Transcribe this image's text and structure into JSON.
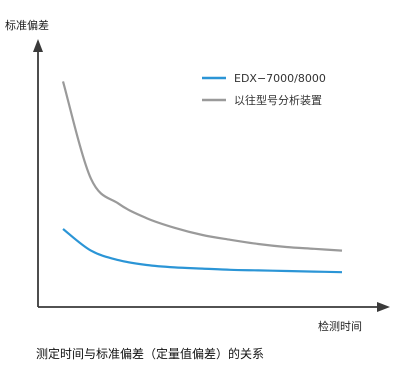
{
  "chart_data": {
    "type": "line",
    "caption": "测定时间与标准偏差（定量值偏差）的关系",
    "ylabel": "标准偏差",
    "xlabel": "检测时间",
    "x": [
      0,
      1,
      2,
      3,
      4,
      5,
      6,
      7,
      8,
      9,
      10
    ],
    "series": [
      {
        "name": "EDX−7000/8000",
        "color": "#2b95d6",
        "values": [
          65,
          47,
          39,
          35,
          33,
          32,
          31,
          30.5,
          30,
          29.5,
          29
        ]
      },
      {
        "name": "以往型号分析装置",
        "color": "#9a9a9a",
        "values": [
          188,
          107,
          86,
          74,
          66,
          60,
          56,
          52.5,
          50,
          48.5,
          47
        ]
      }
    ],
    "legend_position": "top-right",
    "grid": false
  }
}
